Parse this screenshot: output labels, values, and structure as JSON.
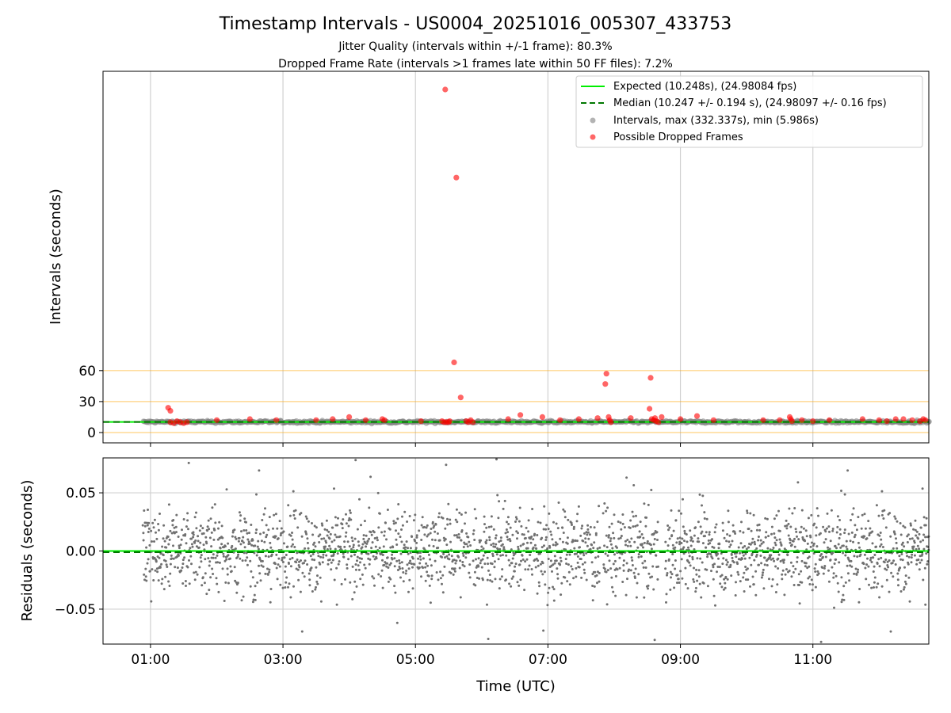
{
  "figure": {
    "title": "Timestamp Intervals - US0004_20251016_005307_433753",
    "subtitle_1": "Jitter Quality (intervals within +/-1 frame): 80.3%",
    "subtitle_2": "Dropped Frame Rate (intervals >1 frames late within 50 FF files): 7.2%"
  },
  "chart_data": [
    {
      "type": "scatter",
      "ylabel": "Intervals (seconds)",
      "xlabel": "",
      "x_range_utc": [
        "00:17",
        "12:45"
      ],
      "ylim": [
        -10,
        350
      ],
      "yticks": [
        0,
        30,
        60
      ],
      "ytick_labels": [
        "0",
        "30",
        "60"
      ],
      "xticks": [
        "01:00",
        "03:00",
        "05:00",
        "07:00",
        "09:00",
        "11:00"
      ],
      "grid": true,
      "threshold_lines": {
        "color": "#ffa500",
        "values": [
          0,
          30,
          60
        ]
      },
      "legend_placement": "top-right",
      "series": [
        {
          "name": "Expected (10.248s), (24.98084 fps)",
          "kind": "line",
          "style": "solid",
          "color": "#00ee00",
          "value": 10.248
        },
        {
          "name": "Median (10.247 +/- 0.194 s), (24.98097 +/- 0.16 fps)",
          "kind": "line",
          "style": "dashed",
          "color": "#007700",
          "value": 10.247
        },
        {
          "name": "Intervals, max (332.337s), min (5.986s)",
          "kind": "scatter",
          "color": "#808080",
          "start_time": "00:53",
          "end_time": "12:45",
          "typical_value": 10.25,
          "max": 332.337,
          "min": 5.986
        },
        {
          "name": "Possible Dropped Frames",
          "kind": "scatter",
          "color": "#ff0000",
          "points": [
            [
              "01:16",
              24
            ],
            [
              "01:18",
              21
            ],
            [
              "01:18",
              10
            ],
            [
              "01:21",
              9
            ],
            [
              "01:24",
              11
            ],
            [
              "01:27",
              10
            ],
            [
              "01:30",
              9
            ],
            [
              "01:33",
              10
            ],
            [
              "02:00",
              12
            ],
            [
              "02:30",
              13
            ],
            [
              "02:54",
              12
            ],
            [
              "03:30",
              12
            ],
            [
              "03:45",
              13
            ],
            [
              "04:00",
              15
            ],
            [
              "04:15",
              12
            ],
            [
              "04:30",
              13
            ],
            [
              "04:32",
              12
            ],
            [
              "05:05",
              11
            ],
            [
              "05:24",
              11
            ],
            [
              "05:26",
              10
            ],
            [
              "05:28",
              10
            ],
            [
              "05:30",
              10
            ],
            [
              "05:31",
              11
            ],
            [
              "05:27",
              332.337
            ],
            [
              "05:37",
              247
            ],
            [
              "05:35",
              68
            ],
            [
              "05:41",
              34
            ],
            [
              "05:46",
              11
            ],
            [
              "05:48",
              10
            ],
            [
              "05:50",
              12
            ],
            [
              "05:52",
              10
            ],
            [
              "06:24",
              13
            ],
            [
              "06:35",
              17
            ],
            [
              "06:55",
              15
            ],
            [
              "07:11",
              12
            ],
            [
              "07:28",
              13
            ],
            [
              "07:45",
              14
            ],
            [
              "07:53",
              57
            ],
            [
              "07:52",
              47
            ],
            [
              "07:55",
              15
            ],
            [
              "07:56",
              12
            ],
            [
              "07:57",
              10
            ],
            [
              "08:15",
              14
            ],
            [
              "08:33",
              53
            ],
            [
              "08:32",
              23
            ],
            [
              "08:34",
              13
            ],
            [
              "08:36",
              12
            ],
            [
              "08:37",
              14
            ],
            [
              "08:38",
              11
            ],
            [
              "08:40",
              10
            ],
            [
              "08:43",
              15
            ],
            [
              "09:00",
              13
            ],
            [
              "09:15",
              16
            ],
            [
              "09:30",
              12
            ],
            [
              "10:15",
              12
            ],
            [
              "10:30",
              12
            ],
            [
              "10:39",
              15
            ],
            [
              "10:40",
              13
            ],
            [
              "10:41",
              11
            ],
            [
              "10:50",
              12
            ],
            [
              "11:00",
              11
            ],
            [
              "11:15",
              12
            ],
            [
              "11:45",
              13
            ],
            [
              "12:00",
              12
            ],
            [
              "12:07",
              11
            ],
            [
              "12:15",
              13
            ],
            [
              "12:22",
              13
            ],
            [
              "12:30",
              12
            ],
            [
              "12:37",
              11
            ],
            [
              "12:40",
              13
            ],
            [
              "12:42",
              12
            ]
          ]
        }
      ]
    },
    {
      "type": "scatter",
      "ylabel": "Residuals (seconds)",
      "xlabel": "Time (UTC)",
      "x_range_utc": [
        "00:17",
        "12:45"
      ],
      "ylim": [
        -0.08,
        0.08
      ],
      "yticks": [
        0.05,
        0.0,
        -0.05
      ],
      "ytick_labels": [
        "0.05",
        "0.00",
        "−0.05"
      ],
      "xticks": [
        "01:00",
        "03:00",
        "05:00",
        "07:00",
        "09:00",
        "11:00"
      ],
      "grid": true,
      "series": [
        {
          "name": "Expected",
          "kind": "line",
          "style": "solid",
          "color": "#00ee00",
          "value": 0.0
        },
        {
          "name": "Median",
          "kind": "line",
          "style": "dashed",
          "color": "#007700",
          "value": -0.001
        },
        {
          "name": "Residuals",
          "kind": "scatter",
          "color": "#707070",
          "start_time": "00:53",
          "end_time": "12:45",
          "spread": 0.025,
          "gaps": [
            [
              "05:50",
              "05:52"
            ],
            [
              "07:47",
              "07:50"
            ],
            [
              "08:40",
              "08:46"
            ]
          ]
        }
      ]
    }
  ]
}
